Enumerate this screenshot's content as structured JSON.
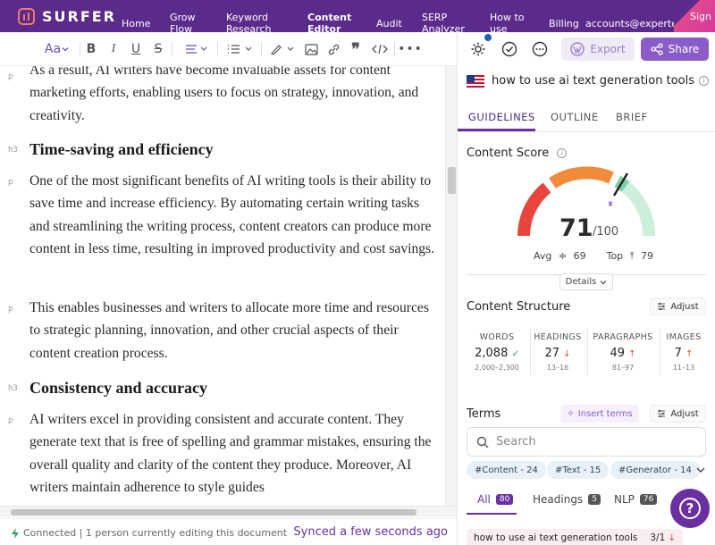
{
  "nav": {
    "brand": "SURFER",
    "links": [
      "Home",
      "Grow\nFlow",
      "Keyword\nResearch",
      "Content\nEditor",
      "Audit",
      "SERP\nAnalyzer",
      "How to\nuse",
      "Billing"
    ],
    "account": "accounts@experte.com",
    "sign": "Sign"
  },
  "toolbar": {
    "font_label": "Aa",
    "icons": [
      "font-size-icon",
      "bold-icon",
      "italic-icon",
      "underline-icon",
      "strikethrough-icon",
      "align-icon",
      "list-icon",
      "highlight-icon",
      "image-icon",
      "link-icon",
      "quote-icon",
      "code-icon",
      "more-icon"
    ]
  },
  "editor": {
    "blocks": [
      {
        "tag": "p",
        "kind": "p",
        "text": "As a result, AI writers have become invaluable assets for content marketing efforts, enabling users to focus on strategy, innovation, and creativity."
      },
      {
        "tag": "h3",
        "kind": "h3",
        "text": "Time-saving and efficiency"
      },
      {
        "tag": "p",
        "kind": "p",
        "text": "One of the most significant benefits of AI writing tools is their ability to save time and increase efficiency. By automating certain writing tasks and streamlining the writing process, content creators can produce more content in less time, resulting in improved productivity and cost savings."
      },
      {
        "tag": "p",
        "kind": "p",
        "text": "This enables businesses and writers to allocate more time and resources to strategic planning, innovation, and other crucial aspects of their content creation process."
      },
      {
        "tag": "h3",
        "kind": "h3",
        "text": "Consistency and accuracy"
      },
      {
        "tag": "p",
        "kind": "p",
        "text": "AI writers excel in providing consistent and accurate content. They generate text that is free of spelling and grammar mistakes, ensuring the overall quality and clarity of the content they produce. Moreover, AI writers maintain adherence to style guides"
      }
    ]
  },
  "status": {
    "connection": "Connected | 1 person currently editing this document",
    "synced": "Synced a few seconds ago"
  },
  "panel": {
    "export_label": "Export",
    "share_label": "Share",
    "keyword": "how to use ai text generation tools",
    "tabs": [
      "GUIDELINES",
      "OUTLINE",
      "BRIEF"
    ],
    "active_tab": "GUIDELINES",
    "content_score": {
      "title": "Content Score",
      "score": 71,
      "max": "/100",
      "avg_label": "Avg",
      "avg": 69,
      "top_label": "Top",
      "top": 79,
      "details_label": "Details"
    },
    "structure": {
      "title": "Content Structure",
      "adjust_label": "Adjust",
      "metrics": [
        {
          "label": "WORDS",
          "value": "2,088",
          "trend": "ok",
          "range": "2,000–2,300"
        },
        {
          "label": "HEADINGS",
          "value": "27",
          "trend": "down",
          "range": "13–16"
        },
        {
          "label": "PARAGRAPHS",
          "value": "49",
          "trend": "up",
          "range": "81–97"
        },
        {
          "label": "IMAGES",
          "value": "7",
          "trend": "up",
          "range": "11–13"
        }
      ]
    },
    "terms": {
      "title": "Terms",
      "insert_label": "Insert terms",
      "adjust_label": "Adjust",
      "search_placeholder": "Search",
      "chips": [
        "#Content - 24",
        "#Text - 15",
        "#Generator - 14"
      ],
      "subtabs": [
        {
          "label": "All",
          "count": "80"
        },
        {
          "label": "Headings",
          "count": "5"
        },
        {
          "label": "NLP",
          "count": "76"
        }
      ],
      "row": {
        "term": "how to use ai text generation tools",
        "count": "3/1"
      }
    }
  },
  "colors": {
    "accent": "#6a2fa0",
    "nav": "#5b2b8c",
    "red": "#e8453c",
    "orange": "#f08b3a",
    "green": "#9bdcb5"
  }
}
